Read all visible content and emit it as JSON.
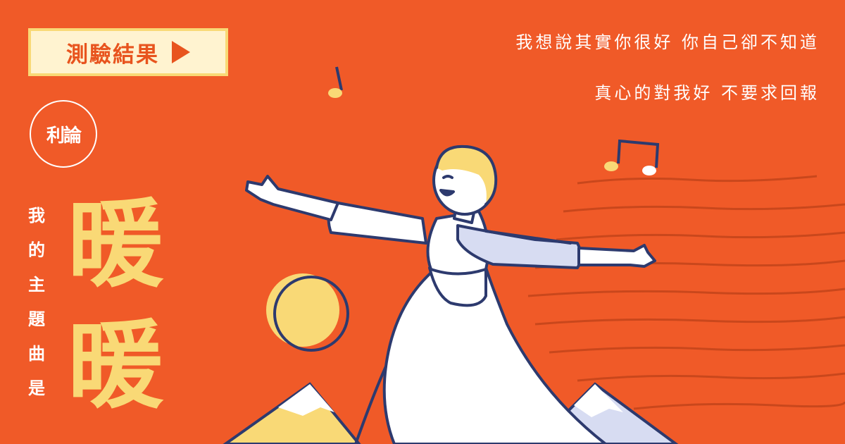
{
  "badge": {
    "label": "測驗結果",
    "icon": "play-icon"
  },
  "logo": {
    "text": "利論"
  },
  "subtitle": {
    "chars": [
      "我",
      "的",
      "主",
      "題",
      "曲",
      "是"
    ]
  },
  "title": {
    "chars": [
      "暖",
      "暖"
    ]
  },
  "lyrics": {
    "line1": "我想說其實你很好  你自己卻不知道",
    "line2": "真心的對我好  不要求回報"
  },
  "colors": {
    "background": "#f05a28",
    "accent": "#f9d976",
    "badge_bg": "#fff3d0",
    "outline": "#2d3a6e",
    "dress": "#ffffff",
    "shade": "#d7dcf2"
  }
}
